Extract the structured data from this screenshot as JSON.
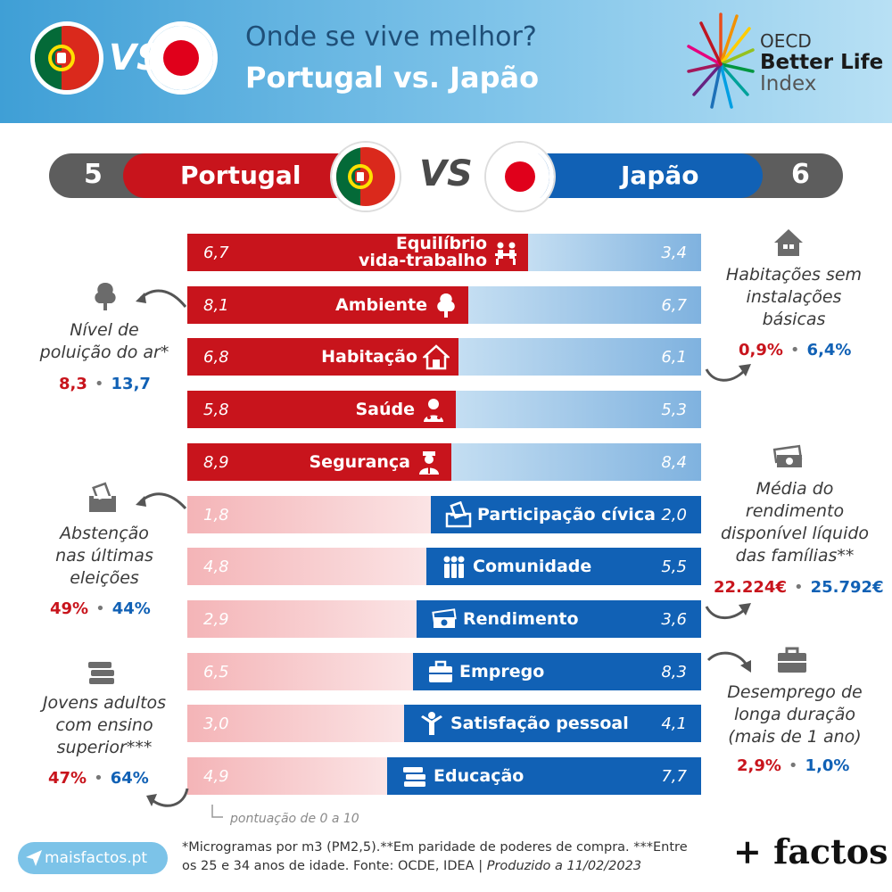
{
  "header": {
    "title_line1": "Onde se vive melhor?",
    "title_line2": "Portugal vs. Japão",
    "vs": "VS",
    "oecd_line1": "OECD",
    "oecd_line2": "Better Life",
    "oecd_line3": "Index"
  },
  "scoreboard": {
    "left_score": "5",
    "left_country": "Portugal",
    "vs": "VS",
    "right_country": "Japão",
    "right_score": "6"
  },
  "colors": {
    "portugal": "#c8141c",
    "japan": "#1161b5"
  },
  "rows": [
    {
      "label_1": "Equilíbrio",
      "label_2": "vida-trabalho",
      "pt": "6,7",
      "jp": "3,4",
      "pt_value": 6.7,
      "jp_value": 3.4,
      "icon": "work-life-icon"
    },
    {
      "label": "Ambiente",
      "pt": "8,1",
      "jp": "6,7",
      "pt_value": 8.1,
      "jp_value": 6.7,
      "icon": "tree-icon"
    },
    {
      "label": "Habitação",
      "pt": "6,8",
      "jp": "6,1",
      "pt_value": 6.8,
      "jp_value": 6.1,
      "icon": "house-icon"
    },
    {
      "label": "Saúde",
      "pt": "5,8",
      "jp": "5,3",
      "pt_value": 5.8,
      "jp_value": 5.3,
      "icon": "doctor-icon"
    },
    {
      "label": "Segurança",
      "pt": "8,9",
      "jp": "8,4",
      "pt_value": 8.9,
      "jp_value": 8.4,
      "icon": "police-icon"
    },
    {
      "label": "Participação cívica",
      "pt": "1,8",
      "jp": "2,0",
      "pt_value": 1.8,
      "jp_value": 2.0,
      "icon": "ballot-box-icon"
    },
    {
      "label": "Comunidade",
      "pt": "4,8",
      "jp": "5,5",
      "pt_value": 4.8,
      "jp_value": 5.5,
      "icon": "people-icon"
    },
    {
      "label": "Rendimento",
      "pt": "2,9",
      "jp": "3,6",
      "pt_value": 2.9,
      "jp_value": 3.6,
      "icon": "money-icon"
    },
    {
      "label": "Emprego",
      "pt": "6,5",
      "jp": "8,3",
      "pt_value": 6.5,
      "jp_value": 8.3,
      "icon": "briefcase-icon"
    },
    {
      "label": "Satisfação pessoal",
      "pt": "3,0",
      "jp": "4,1",
      "pt_value": 3.0,
      "jp_value": 4.1,
      "icon": "happy-person-icon"
    },
    {
      "label": "Educação",
      "pt": "4,9",
      "jp": "7,7",
      "pt_value": 4.9,
      "jp_value": 7.7,
      "icon": "books-icon"
    }
  ],
  "notes": {
    "air": {
      "l1": "Nível de",
      "l2": "poluição do ar*",
      "pt": "8,3",
      "jp": "13,7",
      "icon": "tree-icon"
    },
    "housing": {
      "l1": "Habitações sem",
      "l2": "instalações",
      "l3": "básicas",
      "pt": "0,9%",
      "jp": "6,4%",
      "icon": "house-icon"
    },
    "abstention": {
      "l1": "Abstenção",
      "l2": "nas últimas",
      "l3": "eleições",
      "pt": "49%",
      "jp": "44%",
      "icon": "ballot-box-icon"
    },
    "income": {
      "l1": "Média do",
      "l2": "rendimento",
      "l3": "disponível líquido",
      "l4": "das famílias**",
      "pt": "22.224€",
      "jp": "25.792€",
      "icon": "money-icon"
    },
    "education": {
      "l1": "Jovens adultos",
      "l2": "com ensino",
      "l3": "superior***",
      "pt": "47%",
      "jp": "64%",
      "icon": "books-icon"
    },
    "unemployment": {
      "l1": "Desemprego de",
      "l2": "longa duração",
      "l3": "(mais de 1 ano)",
      "pt": "2,9%",
      "jp": "1,0%",
      "icon": "briefcase-icon"
    }
  },
  "scale_note": "pontuação de 0 a 10",
  "footer": {
    "site": "maisfactos.pt",
    "footnote": "*Microgramas por m3 (PM2,5).**Em paridade de poderes de compra. ***Entre os 25 e 34 anos de idade. Fonte: OCDE, IDEA | ",
    "produced": "Produzido a 11/02/2023",
    "brand": "+ factos"
  }
}
